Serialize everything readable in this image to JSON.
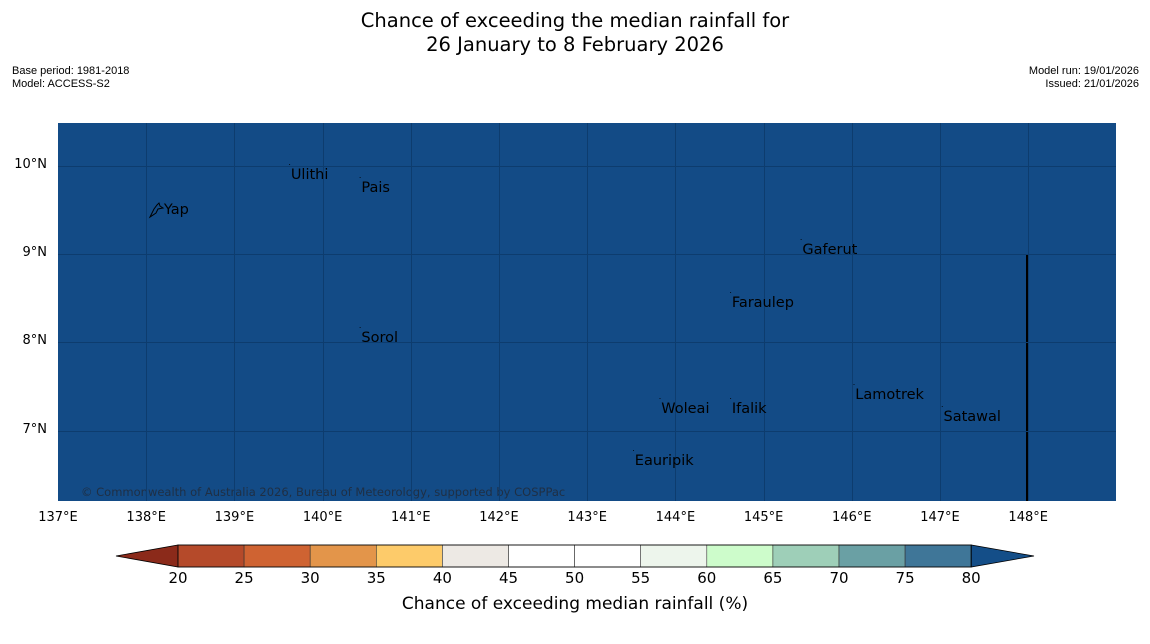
{
  "title": {
    "line1": "Chance of exceeding the median rainfall for",
    "line2": "26 January to 8 February 2026"
  },
  "meta_left": {
    "base_period": "Base period: 1981-2018",
    "model": "Model: ACCESS-S2"
  },
  "meta_right": {
    "model_run": "Model run: 19/01/2026",
    "issued": "Issued: 21/01/2026"
  },
  "map": {
    "background_color": "#134b86",
    "copyright": "© Commonwealth of Australia 2026, Bureau of Meteorology, supported by COSPPac",
    "lon_range": [
      137,
      149
    ],
    "lat_range": [
      6.2,
      10.5
    ],
    "lat_labels": [
      "10°N",
      "9°N",
      "8°N",
      "7°N"
    ],
    "lon_labels": [
      "137°E",
      "138°E",
      "139°E",
      "140°E",
      "141°E",
      "142°E",
      "143°E",
      "144°E",
      "145°E",
      "146°E",
      "147°E",
      "148°E"
    ],
    "places": [
      {
        "name": "Yap",
        "lon": 138.2,
        "lat": 9.5
      },
      {
        "name": "Ulithi",
        "lon": 139.6,
        "lat": 9.9
      },
      {
        "name": "Pais",
        "lon": 140.4,
        "lat": 9.75
      },
      {
        "name": "Gaferut",
        "lon": 145.4,
        "lat": 9.05
      },
      {
        "name": "Faraulep",
        "lon": 144.6,
        "lat": 8.45
      },
      {
        "name": "Sorol",
        "lon": 140.4,
        "lat": 8.05
      },
      {
        "name": "Lamotrek",
        "lon": 146.0,
        "lat": 7.4
      },
      {
        "name": "Woleai",
        "lon": 143.8,
        "lat": 7.25
      },
      {
        "name": "Ifalik",
        "lon": 144.6,
        "lat": 7.25
      },
      {
        "name": "Satawal",
        "lon": 147.0,
        "lat": 7.15
      },
      {
        "name": "Eauripik",
        "lon": 143.5,
        "lat": 6.65
      }
    ]
  },
  "colorbar": {
    "label": "Chance of exceeding median rainfall (%)",
    "ticks": [
      "20",
      "25",
      "30",
      "35",
      "40",
      "45",
      "50",
      "55",
      "60",
      "65",
      "70",
      "75",
      "80"
    ],
    "colors": [
      "#8b2a1a",
      "#b54a2a",
      "#cf6332",
      "#e3954a",
      "#fdcb6a",
      "#ede9e4",
      "#ffffff",
      "#ffffff",
      "#edf5ec",
      "#cdfccb",
      "#9ecfb8",
      "#6aa0a4",
      "#3f7698",
      "#144e88"
    ]
  }
}
